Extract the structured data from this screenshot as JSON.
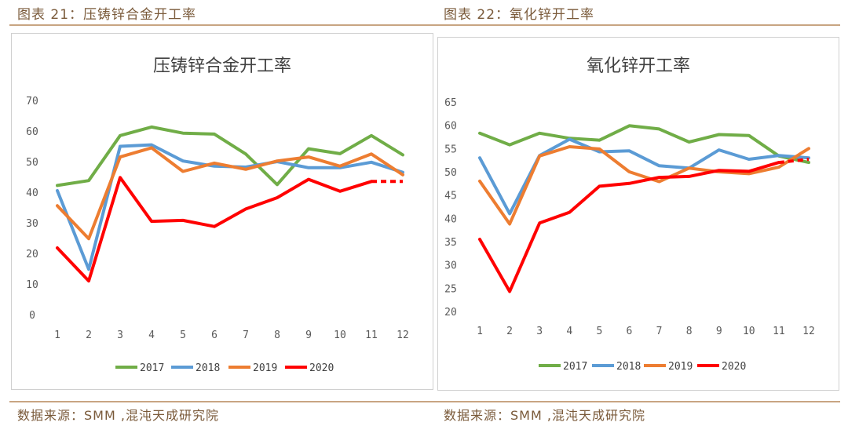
{
  "header": {
    "left_title": "图表 21：压铸锌合金开工率",
    "right_title": "图表 22：氧化锌开工率"
  },
  "footer": {
    "left_source": "数据来源：SMM ,混沌天成研究院",
    "right_source": "数据来源：SMM ,混沌天成研究院"
  },
  "colors": {
    "2017": "#70ad47",
    "2018": "#5b9bd5",
    "2019": "#ed7d31",
    "2020": "#ff0000",
    "accent_rule": "#c8a582"
  },
  "chart_data": [
    {
      "type": "line",
      "title": "压铸锌合金开工率",
      "x": [
        "1",
        "2",
        "3",
        "4",
        "5",
        "6",
        "7",
        "8",
        "9",
        "10",
        "11",
        "12"
      ],
      "ylim": [
        0,
        70
      ],
      "yticks": [
        0,
        10,
        20,
        30,
        40,
        50,
        60,
        70
      ],
      "legend_position": "bottom",
      "grid": false,
      "series": [
        {
          "name": "2017",
          "values": [
            42.2,
            43.8,
            58.5,
            61.3,
            59.3,
            59.0,
            52.5,
            42.5,
            54.2,
            52.6,
            58.5,
            52.2
          ]
        },
        {
          "name": "2018",
          "values": [
            40.5,
            14.8,
            55.0,
            55.5,
            50.2,
            48.5,
            48.2,
            50.0,
            48.0,
            48.0,
            49.8,
            46.5
          ]
        },
        {
          "name": "2019",
          "values": [
            35.6,
            24.8,
            51.5,
            54.5,
            46.8,
            49.5,
            47.5,
            50.2,
            51.5,
            48.5,
            52.5,
            45.7
          ]
        },
        {
          "name": "2020",
          "values": [
            21.8,
            11.0,
            44.8,
            30.5,
            30.8,
            28.8,
            34.5,
            38.2,
            44.2,
            40.3,
            43.5,
            43.5
          ],
          "dashed_segment_from_index": 10
        }
      ]
    },
    {
      "type": "line",
      "title": "氧化锌开工率",
      "x": [
        "1",
        "2",
        "3",
        "4",
        "5",
        "6",
        "7",
        "8",
        "9",
        "10",
        "11",
        "12"
      ],
      "ylim": [
        20,
        65
      ],
      "yticks": [
        20,
        25,
        30,
        35,
        40,
        45,
        50,
        55,
        60,
        65
      ],
      "legend_position": "bottom",
      "grid": false,
      "series": [
        {
          "name": "2017",
          "values": [
            58.3,
            55.8,
            58.3,
            57.2,
            56.8,
            59.9,
            59.2,
            56.4,
            58.0,
            57.8,
            53.4,
            52.0
          ]
        },
        {
          "name": "2018",
          "values": [
            53.0,
            41.0,
            53.5,
            57.0,
            54.3,
            54.5,
            51.3,
            50.8,
            54.7,
            52.7,
            53.5,
            53.0
          ]
        },
        {
          "name": "2019",
          "values": [
            48.0,
            38.8,
            53.4,
            55.4,
            54.9,
            50.0,
            47.9,
            50.8,
            50.0,
            49.6,
            51.0,
            55.0
          ]
        },
        {
          "name": "2020",
          "values": [
            35.5,
            24.3,
            39.0,
            41.3,
            46.9,
            47.5,
            48.8,
            49.0,
            50.3,
            50.1,
            52.0,
            52.7
          ],
          "dashed_segment_from_index": 10
        }
      ]
    }
  ]
}
